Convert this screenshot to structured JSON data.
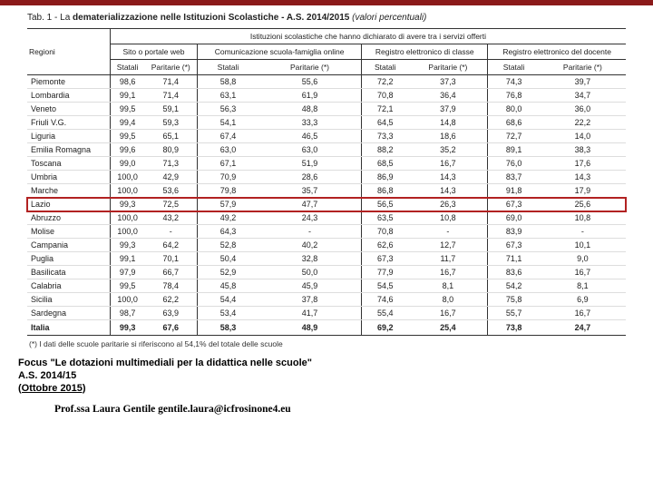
{
  "title_prefix": "Tab. 1 - La ",
  "title_bold": "dematerializzazione nelle Istituzioni Scolastiche - A.S. 2014/2015",
  "title_italic": " (valori percentuali)",
  "header_top": "Istituzioni scolastiche che hanno dichiarato di avere tra i servizi offerti",
  "regioni_label": "Regioni",
  "groups": [
    "Sito o portale web",
    "Comunicazione scuola-famiglia online",
    "Registro elettronico di classe",
    "Registro elettronico del docente"
  ],
  "sub_labels": {
    "statali": "Statali",
    "paritarie": "Paritarie (*)"
  },
  "rows": [
    {
      "r": "Piemonte",
      "v": [
        "98,6",
        "71,4",
        "58,8",
        "55,6",
        "72,2",
        "37,3",
        "74,3",
        "39,7"
      ]
    },
    {
      "r": "Lombardia",
      "v": [
        "99,1",
        "71,4",
        "63,1",
        "61,9",
        "70,8",
        "36,4",
        "76,8",
        "34,7"
      ]
    },
    {
      "r": "Veneto",
      "v": [
        "99,5",
        "59,1",
        "56,3",
        "48,8",
        "72,1",
        "37,9",
        "80,0",
        "36,0"
      ]
    },
    {
      "r": "Friuli V.G.",
      "v": [
        "99,4",
        "59,3",
        "54,1",
        "33,3",
        "64,5",
        "14,8",
        "68,6",
        "22,2"
      ]
    },
    {
      "r": "Liguria",
      "v": [
        "99,5",
        "65,1",
        "67,4",
        "46,5",
        "73,3",
        "18,6",
        "72,7",
        "14,0"
      ]
    },
    {
      "r": "Emilia Romagna",
      "v": [
        "99,6",
        "80,9",
        "63,0",
        "63,0",
        "88,2",
        "35,2",
        "89,1",
        "38,3"
      ]
    },
    {
      "r": "Toscana",
      "v": [
        "99,0",
        "71,3",
        "67,1",
        "51,9",
        "68,5",
        "16,7",
        "76,0",
        "17,6"
      ]
    },
    {
      "r": "Umbria",
      "v": [
        "100,0",
        "42,9",
        "70,9",
        "28,6",
        "86,9",
        "14,3",
        "83,7",
        "14,3"
      ]
    },
    {
      "r": "Marche",
      "v": [
        "100,0",
        "53,6",
        "79,8",
        "35,7",
        "86,8",
        "14,3",
        "91,8",
        "17,9"
      ]
    },
    {
      "r": "Lazio",
      "v": [
        "99,3",
        "72,5",
        "57,9",
        "47,7",
        "56,5",
        "26,3",
        "67,3",
        "25,6"
      ],
      "hl": true
    },
    {
      "r": "Abruzzo",
      "v": [
        "100,0",
        "43,2",
        "49,2",
        "24,3",
        "63,5",
        "10,8",
        "69,0",
        "10,8"
      ]
    },
    {
      "r": "Molise",
      "v": [
        "100,0",
        "-",
        "64,3",
        "-",
        "70,8",
        "-",
        "83,9",
        "-"
      ]
    },
    {
      "r": "Campania",
      "v": [
        "99,3",
        "64,2",
        "52,8",
        "40,2",
        "62,6",
        "12,7",
        "67,3",
        "10,1"
      ]
    },
    {
      "r": "Puglia",
      "v": [
        "99,1",
        "70,1",
        "50,4",
        "32,8",
        "67,3",
        "11,7",
        "71,1",
        "9,0"
      ]
    },
    {
      "r": "Basilicata",
      "v": [
        "97,9",
        "66,7",
        "52,9",
        "50,0",
        "77,9",
        "16,7",
        "83,6",
        "16,7"
      ]
    },
    {
      "r": "Calabria",
      "v": [
        "99,5",
        "78,4",
        "45,8",
        "45,9",
        "54,5",
        "8,1",
        "54,2",
        "8,1"
      ]
    },
    {
      "r": "Sicilia",
      "v": [
        "100,0",
        "62,2",
        "54,4",
        "37,8",
        "74,6",
        "8,0",
        "75,8",
        "6,9"
      ]
    },
    {
      "r": "Sardegna",
      "v": [
        "98,7",
        "63,9",
        "53,4",
        "41,7",
        "55,4",
        "16,7",
        "55,7",
        "16,7"
      ]
    }
  ],
  "total": {
    "r": "Italia",
    "v": [
      "99,3",
      "67,6",
      "58,3",
      "48,9",
      "69,2",
      "25,4",
      "73,8",
      "24,7"
    ]
  },
  "footnote": "(*) I dati delle scuole paritarie si riferiscono al 54,1% del totale delle scuole",
  "caption": {
    "line1": "Focus \"Le dotazioni multimediali per la didattica nelle scuole\"",
    "line2": "A.S. 2014/15",
    "line3": "(Ottobre 2015)"
  },
  "author": "Prof.ssa Laura Gentile   gentile.laura@icfrosinone4.eu"
}
